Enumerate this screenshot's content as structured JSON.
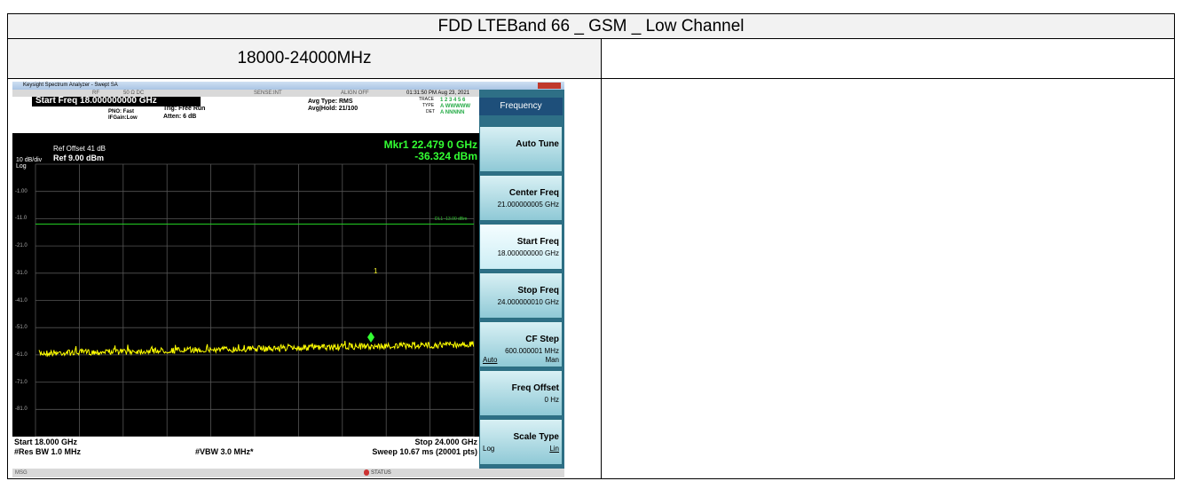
{
  "header": {
    "title": "FDD LTEBand 66 _ GSM _ Low Channel",
    "range": "18000-24000MHz"
  },
  "screenshot": {
    "window_title": "Keysight Spectrum Analyzer - Swept SA",
    "status": [
      "RF",
      "50 Ω  DC",
      "SENSE:INT",
      "ALIGN OFF",
      "01:31:50 PM Aug 23, 2021"
    ],
    "active_param": "Start Freq 18.000000000 GHz",
    "settings": [
      "PNO: Fast",
      "IFGain:Low",
      "Trig: Free Run",
      "Atten: 6 dB",
      "Avg Type: RMS",
      "Avg|Hold: 21/100"
    ],
    "trace_info": {
      "trace": "TRACE",
      "trace_nums": "1 2 3 4 5 6",
      "type": "TYPE",
      "type_val": "A WWWWW",
      "det": "DET",
      "det_val": "A NNNNN"
    },
    "ref_offset": "Ref Offset 41 dB",
    "scale": "10 dB/div",
    "ref": "Ref 9.00 dBm",
    "log": "Log",
    "marker": {
      "freq": "Mkr1 22.479 0 GHz",
      "level": "-36.324 dBm",
      "label": "1"
    },
    "display_line": "DL1 -13.00 dBm",
    "y_labels": [
      "-1.00",
      "-11.0",
      "-21.0",
      "-31.0",
      "-41.0",
      "-51.0",
      "-61.0",
      "-71.0",
      "-81.0"
    ],
    "footer": {
      "start": "Start 18.000 GHz",
      "stop": "Stop 24.000 GHz",
      "rbw": "#Res BW 1.0 MHz",
      "vbw": "#VBW 3.0 MHz*",
      "sweep": "Sweep  10.67 ms (20001 pts)"
    },
    "msg": "MSG",
    "status_label": "STATUS",
    "menu": {
      "title": "Frequency",
      "buttons": [
        {
          "label": "Auto Tune"
        },
        {
          "label": "Center Freq",
          "value": "21.000000005 GHz"
        },
        {
          "label": "Start Freq",
          "value": "18.000000000 GHz"
        },
        {
          "label": "Stop Freq",
          "value": "24.000000010 GHz"
        },
        {
          "label": "CF Step",
          "value": "600.000001 MHz",
          "options": [
            "Auto",
            "Man"
          ]
        },
        {
          "label": "Freq Offset",
          "value": "0 Hz"
        },
        {
          "label": "Scale Type",
          "options": [
            "Log",
            "Lin"
          ]
        }
      ]
    }
  }
}
